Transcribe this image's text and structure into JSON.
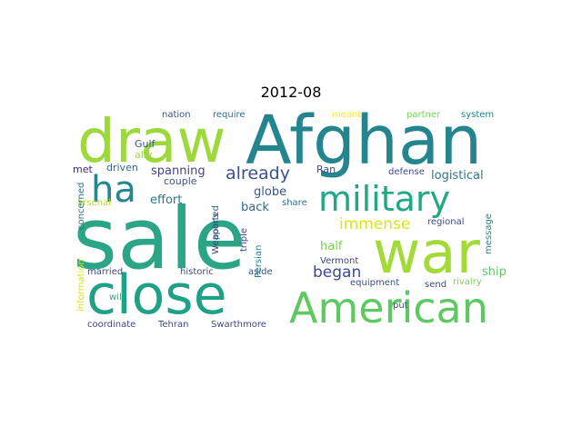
{
  "title": "2012-08",
  "words": [
    {
      "text": "sale",
      "color": "#2ca586",
      "size": 94,
      "rotate": 0
    },
    {
      "text": "Afghan",
      "color": "#25858e",
      "size": 74,
      "rotate": 0
    },
    {
      "text": "draw",
      "color": "#9dd93b",
      "size": 66,
      "rotate": 0
    },
    {
      "text": "war",
      "color": "#a2da37",
      "size": 64,
      "rotate": 0
    },
    {
      "text": "close",
      "color": "#1fa188",
      "size": 60,
      "rotate": 0
    },
    {
      "text": "American",
      "color": "#5ec962",
      "size": 46,
      "rotate": 0
    },
    {
      "text": "military",
      "color": "#22a884",
      "size": 38,
      "rotate": 0
    },
    {
      "text": "ha",
      "color": "#24868e",
      "size": 40,
      "rotate": 0
    },
    {
      "text": "already",
      "color": "#3b528b",
      "size": 19,
      "rotate": 0
    },
    {
      "text": "immense",
      "color": "#dde318",
      "size": 17,
      "rotate": 0
    },
    {
      "text": "began",
      "color": "#3e4a89",
      "size": 17,
      "rotate": 0
    },
    {
      "text": "logistical",
      "color": "#2a788e",
      "size": 13,
      "rotate": 0
    },
    {
      "text": "spanning",
      "color": "#414487",
      "size": 13,
      "rotate": 0
    },
    {
      "text": "effort",
      "color": "#2a788e",
      "size": 13,
      "rotate": 0
    },
    {
      "text": "globe",
      "color": "#38588c",
      "size": 13,
      "rotate": 0
    },
    {
      "text": "back",
      "color": "#31668e",
      "size": 13,
      "rotate": 0
    },
    {
      "text": "half",
      "color": "#7ad151",
      "size": 13,
      "rotate": 0
    },
    {
      "text": "ship",
      "color": "#5ec962",
      "size": 13,
      "rotate": 0
    },
    {
      "text": "Gulf",
      "color": "#39558c",
      "size": 11,
      "rotate": 0
    },
    {
      "text": "ally",
      "color": "#95d840",
      "size": 11,
      "rotate": 0
    },
    {
      "text": "met",
      "color": "#482475",
      "size": 11,
      "rotate": 0
    },
    {
      "text": "driven",
      "color": "#31688e",
      "size": 11,
      "rotate": 0
    },
    {
      "text": "couple",
      "color": "#3b528b",
      "size": 11,
      "rotate": 0
    },
    {
      "text": "nation",
      "color": "#3b528b",
      "size": 10,
      "rotate": 0
    },
    {
      "text": "require",
      "color": "#2e6e8e",
      "size": 10,
      "rotate": 0
    },
    {
      "text": "meant",
      "color": "#fde725",
      "size": 10,
      "rotate": 0
    },
    {
      "text": "partner",
      "color": "#75d054",
      "size": 10,
      "rotate": 0
    },
    {
      "text": "system",
      "color": "#26828e",
      "size": 10,
      "rotate": 0
    },
    {
      "text": "Ran",
      "color": "#3d4e8a",
      "size": 11,
      "rotate": 0
    },
    {
      "text": "defense",
      "color": "#3e4989",
      "size": 10,
      "rotate": 0
    },
    {
      "text": "regional",
      "color": "#3e4989",
      "size": 10,
      "rotate": 0
    },
    {
      "text": "arsenal",
      "color": "#bddf26",
      "size": 10,
      "rotate": 0
    },
    {
      "text": "share",
      "color": "#2e6e8e",
      "size": 10,
      "rotate": 0
    },
    {
      "text": "Vermont",
      "color": "#3f4788",
      "size": 10,
      "rotate": 0
    },
    {
      "text": "married",
      "color": "#3f4788",
      "size": 10,
      "rotate": 0
    },
    {
      "text": "historic",
      "color": "#3f4788",
      "size": 10,
      "rotate": 0
    },
    {
      "text": "aside",
      "color": "#3b528b",
      "size": 10,
      "rotate": 0
    },
    {
      "text": "equipment",
      "color": "#3b528b",
      "size": 10,
      "rotate": 0
    },
    {
      "text": "send",
      "color": "#3f4788",
      "size": 10,
      "rotate": 0
    },
    {
      "text": "rivalry",
      "color": "#7ad151",
      "size": 10,
      "rotate": 0
    },
    {
      "text": "will",
      "color": "#2ab07f",
      "size": 10,
      "rotate": 0
    },
    {
      "text": "put",
      "color": "#3e4989",
      "size": 10,
      "rotate": 0
    },
    {
      "text": "coordinate",
      "color": "#3f4788",
      "size": 10,
      "rotate": 0
    },
    {
      "text": "Tehran",
      "color": "#3f4788",
      "size": 10,
      "rotate": 0
    },
    {
      "text": "Swarthmore",
      "color": "#3f4788",
      "size": 10,
      "rotate": 0
    },
    {
      "text": "concerned",
      "color": "#2c728e",
      "size": 10,
      "rotate": -90
    },
    {
      "text": "information",
      "color": "#d8e219",
      "size": 10,
      "rotate": -90
    },
    {
      "text": "pointed",
      "color": "#2d708e",
      "size": 10,
      "rotate": -90
    },
    {
      "text": "Weapons",
      "color": "#3f4788",
      "size": 10,
      "rotate": -90
    },
    {
      "text": "triple",
      "color": "#3f4788",
      "size": 10,
      "rotate": -90
    },
    {
      "text": "Persian",
      "color": "#26828e",
      "size": 10,
      "rotate": -90
    },
    {
      "text": "message",
      "color": "#26828e",
      "size": 10,
      "rotate": -90
    }
  ]
}
